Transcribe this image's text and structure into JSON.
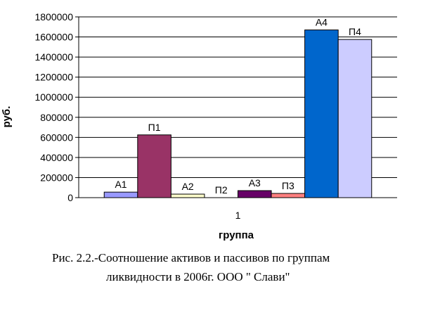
{
  "chart_data": {
    "type": "bar",
    "title": "",
    "xlabel": "группа",
    "ylabel": "руб.",
    "categories": [
      "1"
    ],
    "ylim": [
      0,
      1800000
    ],
    "yticks": [
      "0",
      "200000",
      "400000",
      "600000",
      "800000",
      "1000000",
      "1200000",
      "1400000",
      "1600000",
      "1800000"
    ],
    "grid": true,
    "legend": "none",
    "series": [
      {
        "name": "А1",
        "values": [
          55000
        ],
        "color": "#9999ff"
      },
      {
        "name": "П1",
        "values": [
          625000
        ],
        "color": "#993366"
      },
      {
        "name": "А2",
        "values": [
          35000
        ],
        "color": "#ffffcc"
      },
      {
        "name": "П2",
        "values": [
          0
        ],
        "color": "#ccffff"
      },
      {
        "name": "А3",
        "values": [
          70000
        ],
        "color": "#660066"
      },
      {
        "name": "П3",
        "values": [
          42000
        ],
        "color": "#ff8080"
      },
      {
        "name": "А4",
        "values": [
          1670000
        ],
        "color": "#0066cc"
      },
      {
        "name": "П4",
        "values": [
          1575000
        ],
        "color": "#ccccff"
      }
    ]
  },
  "caption": {
    "line1": "Рис. 2.2.-Соотношение активов и пассивов по группам",
    "line2": "ликвидности в 2006г. ООО \" Слави\""
  }
}
